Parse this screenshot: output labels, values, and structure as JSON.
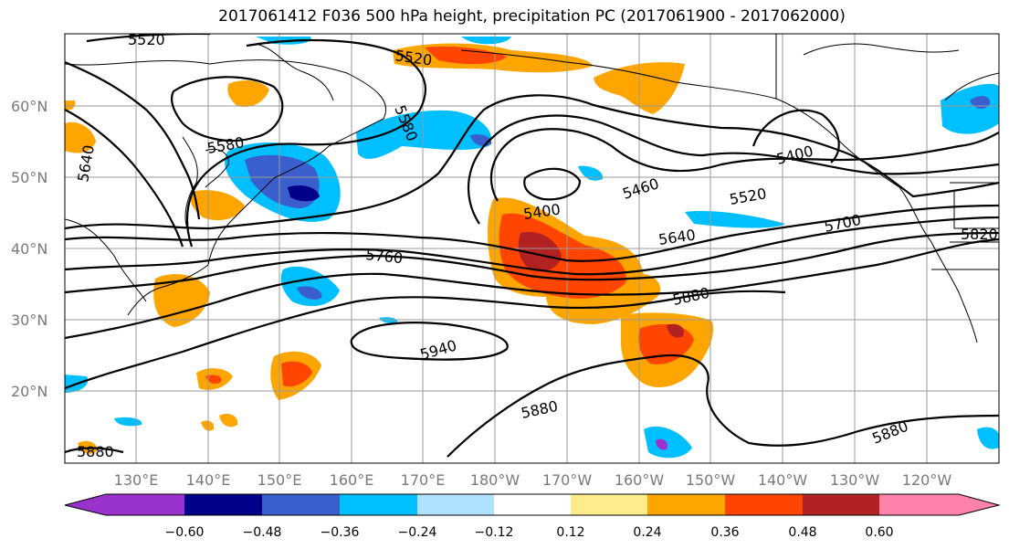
{
  "title": "2017061412 F036 500 hPa height, precipitation PC (2017061900 - 2017062000)",
  "latitude_labels": [
    "20°N",
    "30°N",
    "40°N",
    "50°N",
    "60°N"
  ],
  "longitude_labels": [
    "130°E",
    "140°E",
    "150°E",
    "160°E",
    "170°E",
    "180°W",
    "170°W",
    "160°W",
    "150°W",
    "140°W",
    "130°W",
    "120°W"
  ],
  "contour_labels": [
    "5520",
    "5520",
    "5580",
    "5640",
    "5580",
    "5400",
    "5460",
    "5520",
    "5400",
    "5640",
    "5700",
    "5760",
    "5820",
    "5880",
    "5940",
    "5880",
    "5880",
    "5880"
  ],
  "colorbar": {
    "tick_labels": [
      "−0.60",
      "−0.48",
      "−0.36",
      "−0.24",
      "−0.12",
      "0.12",
      "0.24",
      "0.36",
      "0.48",
      "0.60"
    ],
    "colors": [
      "#9a32cd",
      "#00008b",
      "#3a5fcd",
      "#00bfff",
      "#b0e2ff",
      "#ffffff",
      "#ffec8b",
      "#ffa500",
      "#ff4500",
      "#b22222",
      "#ff82ab"
    ]
  },
  "fill_colors": {
    "neg_light": "#b0e2ff",
    "neg_mid": "#00bfff",
    "neg_strong": "#3a5fcd",
    "neg_max": "#00008b",
    "neg_extreme": "#9a32cd",
    "pos_light": "#ffec8b",
    "pos_mid": "#ffa500",
    "pos_strong": "#ff4500",
    "pos_max": "#b22222"
  }
}
